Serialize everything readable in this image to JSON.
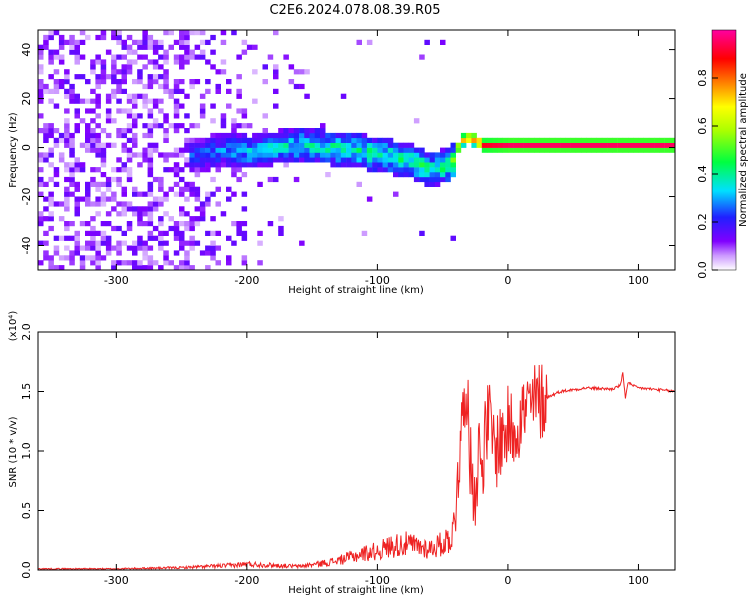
{
  "title": "C2E6.2024.078.08.39.R05",
  "chart_data": [
    {
      "type": "heatmap",
      "xlabel": "Height of straight line (km)",
      "ylabel": "Frequency (Hz)",
      "xlim": [
        -360,
        128
      ],
      "ylim": [
        -50,
        48
      ],
      "x_ticks": [
        -300,
        -200,
        -100,
        0,
        100
      ],
      "x_tick_labels": [
        "-300",
        "-200",
        "-100",
        "0",
        "100"
      ],
      "y_ticks": [
        -40,
        -20,
        0,
        20,
        40
      ],
      "y_tick_labels": [
        "-40",
        "-20",
        "0",
        "20",
        "40"
      ],
      "colorbar": {
        "label": "Normalized spectral amplitude",
        "range": [
          0,
          1
        ],
        "ticks": [
          0.0,
          0.2,
          0.4,
          0.6,
          0.8
        ],
        "tick_labels": [
          "0.0",
          "0.2",
          "0.4",
          "0.6",
          "0.8"
        ],
        "colormap": [
          "#ffffff",
          "#cc99ff",
          "#8000ff",
          "#2020ff",
          "#00e0ff",
          "#00ff40",
          "#ffff00",
          "#ff8000",
          "#ff0000",
          "#ff00a0"
        ]
      },
      "signal_center_frequency": [
        {
          "x": -240,
          "y": -4
        },
        {
          "x": -220,
          "y": -2
        },
        {
          "x": -200,
          "y": -3
        },
        {
          "x": -180,
          "y": -1
        },
        {
          "x": -160,
          "y": 0
        },
        {
          "x": -140,
          "y": -1
        },
        {
          "x": -120,
          "y": -2
        },
        {
          "x": -100,
          "y": -4
        },
        {
          "x": -80,
          "y": -6
        },
        {
          "x": -60,
          "y": -10
        },
        {
          "x": -45,
          "y": -8
        },
        {
          "x": -38,
          "y": 2
        },
        {
          "x": -30,
          "y": 3
        },
        {
          "x": -20,
          "y": 0
        },
        {
          "x": 0,
          "y": 0
        },
        {
          "x": 60,
          "y": 0
        },
        {
          "x": 128,
          "y": 0
        }
      ],
      "signal_peak_amplitude": [
        {
          "x": -240,
          "y": 0.3
        },
        {
          "x": -200,
          "y": 0.4
        },
        {
          "x": -160,
          "y": 0.45
        },
        {
          "x": -120,
          "y": 0.5
        },
        {
          "x": -80,
          "y": 0.5
        },
        {
          "x": -50,
          "y": 0.5
        },
        {
          "x": -35,
          "y": 0.8
        },
        {
          "x": -20,
          "y": 0.9
        },
        {
          "x": 0,
          "y": 0.95
        },
        {
          "x": 128,
          "y": 0.95
        }
      ]
    },
    {
      "type": "line",
      "xlabel": "Height of straight line (km)",
      "ylabel": "SNR (10 * v/v)",
      "y_scale_label": "(x10⁴)",
      "xlim": [
        -360,
        128
      ],
      "ylim": [
        0,
        2.0
      ],
      "x_ticks": [
        -300,
        -200,
        -100,
        0,
        100
      ],
      "x_tick_labels": [
        "-300",
        "-200",
        "-100",
        "0",
        "100"
      ],
      "y_ticks": [
        0.0,
        0.5,
        1.0,
        1.5,
        2.0
      ],
      "y_tick_labels": [
        "0.0",
        "0.5",
        "1.0",
        "1.5",
        "2.0"
      ],
      "color": "#ee2222",
      "series": [
        {
          "x": [
            -360,
            -300,
            -250,
            -210,
            -200,
            -160,
            -140,
            -130,
            -110,
            -100,
            -90,
            -80,
            -70,
            -60,
            -50,
            -42,
            -38,
            -35,
            -32,
            -30,
            -28,
            -25,
            -22,
            -20,
            -15,
            -10,
            -5,
            0,
            5,
            10,
            15,
            20,
            30,
            40,
            60,
            80,
            86,
            88,
            90,
            92,
            95,
            100,
            110,
            128
          ],
          "y": [
            0.01,
            0.01,
            0.02,
            0.04,
            0.05,
            0.03,
            0.06,
            0.08,
            0.14,
            0.16,
            0.2,
            0.22,
            0.2,
            0.18,
            0.22,
            0.3,
            0.9,
            1.2,
            1.7,
            1.1,
            0.8,
            0.7,
            1.0,
            0.9,
            1.3,
            1.0,
            1.1,
            1.2,
            1.2,
            1.3,
            1.35,
            1.4,
            1.45,
            1.5,
            1.53,
            1.52,
            1.55,
            1.65,
            1.45,
            1.58,
            1.55,
            1.53,
            1.52,
            1.5
          ]
        }
      ]
    }
  ]
}
